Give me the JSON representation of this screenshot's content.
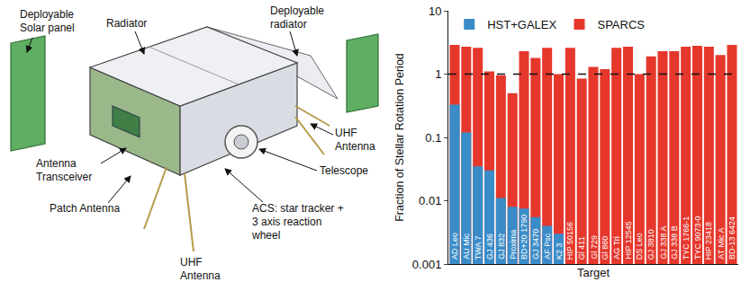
{
  "diagram": {
    "labels": [
      {
        "lines": [
          "Deployable",
          "Solar panel"
        ]
      },
      {
        "lines": [
          "Radiator"
        ]
      },
      {
        "lines": [
          "Deployable",
          "radiator"
        ]
      },
      {
        "lines": [
          "UHF",
          "Antenna"
        ]
      },
      {
        "lines": [
          "Telescope"
        ]
      },
      {
        "lines": [
          "Antenna",
          "Transceiver"
        ]
      },
      {
        "lines": [
          "Patch Antenna"
        ]
      },
      {
        "lines": [
          "ACS: star tracker +",
          "3 axis reaction",
          "wheel"
        ]
      },
      {
        "lines": [
          "UHF",
          "Antenna"
        ]
      }
    ]
  },
  "chart_data": {
    "type": "bar",
    "x_label": "Target",
    "y_label": "Fraction of Stellar Rotation Period",
    "categories": [
      "AD Leo",
      "AU Mic",
      "TWA 7",
      "GJ 436",
      "GJ 832",
      "Proxima",
      "BD+20 1790",
      "GJ 3470",
      "AF Psc",
      "K2 3",
      "HIP 50156",
      "Gl 411",
      "Gl 729",
      "Gl 860",
      "AG Tri",
      "HIP 12545",
      "DS Leo",
      "GJ 3810",
      "GJ 338 A",
      "GJ 338 B",
      "TYC 1766-1",
      "TYC 9073-0",
      "HIP 23418",
      "AT Mic A",
      "BD-13 6424"
    ],
    "series": [
      {
        "name": "HST+GALEX",
        "color": "#3a8cc8",
        "values": [
          0.33,
          0.12,
          0.035,
          0.03,
          0.011,
          0.008,
          0.0075,
          0.0055,
          0.004,
          0.003,
          null,
          null,
          null,
          null,
          null,
          null,
          null,
          null,
          null,
          null,
          null,
          null,
          null,
          null,
          null
        ]
      },
      {
        "name": "SPARCS",
        "color": "#e5372c",
        "values": [
          2.9,
          2.7,
          2.6,
          1.1,
          0.95,
          0.5,
          2.3,
          1.8,
          2.6,
          1.0,
          2.6,
          0.85,
          1.3,
          1.2,
          2.6,
          2.7,
          1.0,
          1.9,
          2.3,
          2.3,
          2.7,
          2.8,
          2.7,
          2.0,
          2.9
        ]
      }
    ],
    "ylim": [
      0.001,
      10
    ],
    "yticks": [
      0.001,
      0.01,
      0.1,
      1,
      10
    ],
    "log": "y",
    "grid": false,
    "legend": "upper left",
    "stacked": false,
    "tick_labels": "y",
    "reference_line": 1
  }
}
